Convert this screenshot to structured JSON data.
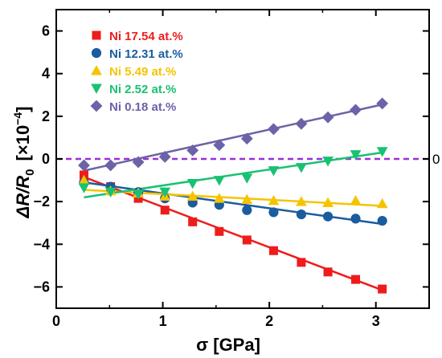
{
  "chart_data": {
    "type": "scatter",
    "title": "",
    "xlabel": "σ [GPa]",
    "ylabel_main": "ΔR/R",
    "ylabel_sub": "0",
    "ylabel_unit_prefix": "[×10",
    "ylabel_unit_exp": "−4",
    "ylabel_unit_suffix": "]",
    "xlim": [
      0,
      3.5
    ],
    "ylim": [
      -7,
      7
    ],
    "xticks": [
      0,
      1,
      2,
      3
    ],
    "xtick_labels": [
      "0",
      "1",
      "2",
      "3"
    ],
    "yticks": [
      -6,
      -4,
      -2,
      0,
      2,
      4,
      6
    ],
    "ytick_labels": [
      "−6",
      "−4",
      "−2",
      "0",
      "2",
      "4",
      "6"
    ],
    "reference_line": {
      "y": 0,
      "color": "#9b2fd6",
      "style": "dashed",
      "label": "0"
    },
    "grid": false,
    "legend_position": "top-left",
    "x": [
      0.26,
      0.51,
      0.77,
      1.02,
      1.28,
      1.53,
      1.79,
      2.04,
      2.3,
      2.55,
      2.81,
      3.06
    ],
    "series": [
      {
        "name": "Ni 17.54 at.%",
        "marker": "square",
        "color": "#ee1c1c",
        "values": [
          -0.75,
          -1.3,
          -1.85,
          -2.4,
          -2.95,
          -3.4,
          -3.8,
          -4.3,
          -4.85,
          -5.3,
          -5.65,
          -6.1
        ],
        "fit": [
          -0.85,
          -6.15
        ]
      },
      {
        "name": "Ni 12.31 at.%",
        "marker": "circle",
        "color": "#1a5c9e",
        "values": [
          -1.1,
          -1.3,
          -1.55,
          -1.85,
          -2.05,
          -2.15,
          -2.4,
          -2.5,
          -2.6,
          -2.7,
          -2.8,
          -2.9
        ],
        "fit": [
          -1.1,
          -3.05
        ]
      },
      {
        "name": "Ni 5.49 at.%",
        "marker": "triangle-up",
        "color": "#f5c400",
        "values": [
          -1.0,
          -1.5,
          -1.6,
          -1.75,
          -1.75,
          -1.85,
          -1.9,
          -1.95,
          -2.0,
          -2.05,
          -1.95,
          -2.1
        ],
        "fit": [
          -1.45,
          -2.2
        ]
      },
      {
        "name": "Ni 2.52 at.%",
        "marker": "triangle-down",
        "color": "#19c172",
        "values": [
          -1.35,
          -1.55,
          -1.65,
          -1.55,
          -1.15,
          -1.0,
          -0.9,
          -0.55,
          -0.4,
          -0.1,
          0.2,
          0.35
        ],
        "fit": [
          -1.8,
          0.3
        ]
      },
      {
        "name": "Ni 0.18 at.%",
        "marker": "diamond",
        "color": "#6b63a8",
        "values": [
          -0.3,
          -0.3,
          -0.15,
          0.1,
          0.4,
          0.65,
          0.95,
          1.4,
          1.65,
          1.95,
          2.3,
          2.6
        ],
        "fit": [
          -0.55,
          2.55
        ]
      }
    ]
  }
}
